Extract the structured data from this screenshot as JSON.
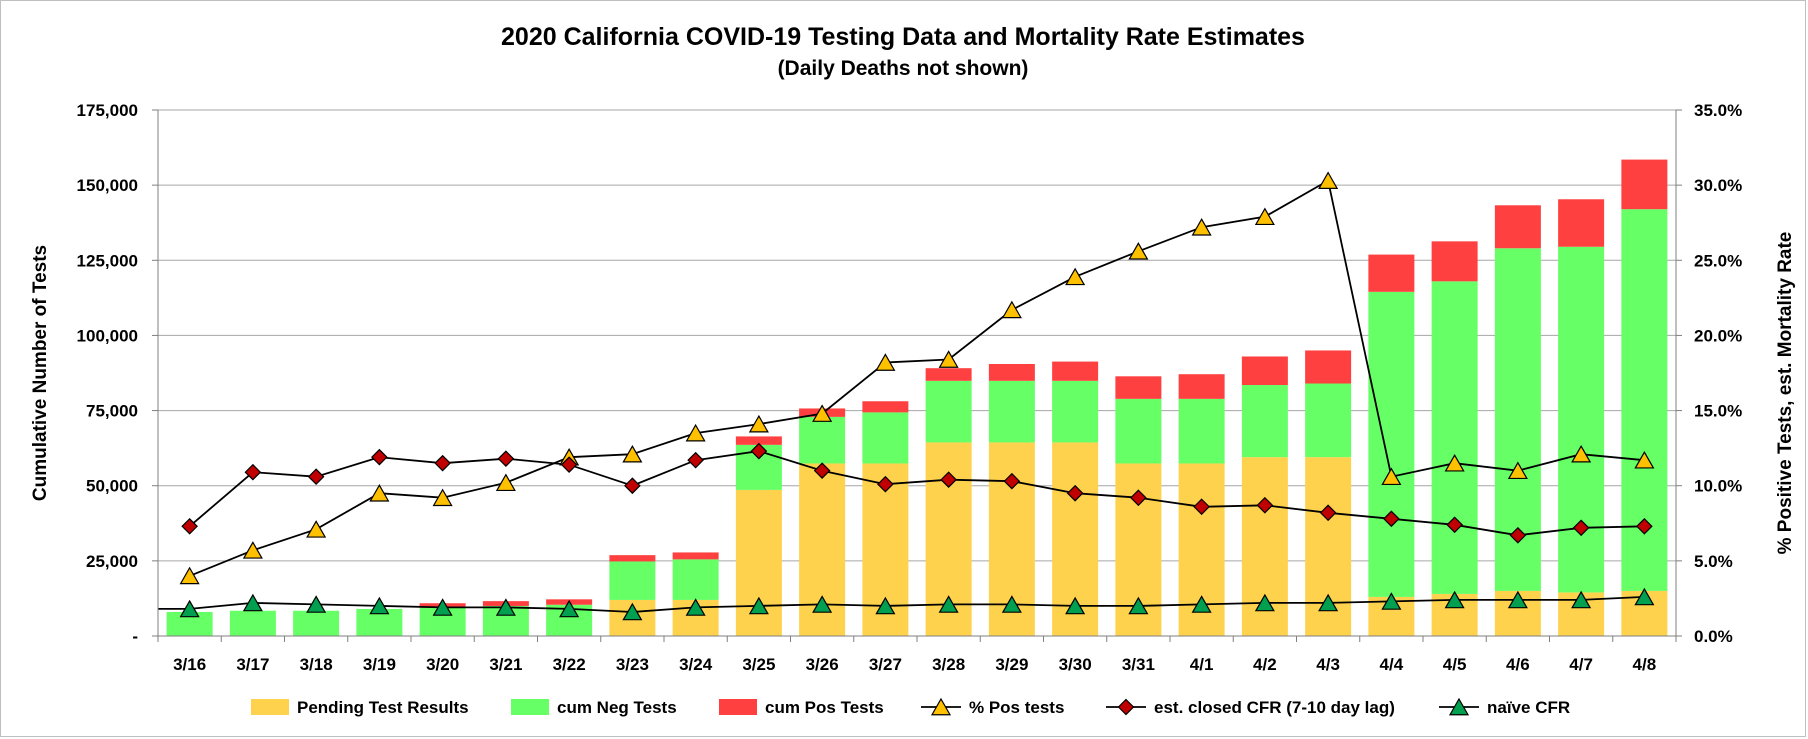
{
  "chart_data": {
    "type": "bar",
    "title": "2020 California COVID-19 Testing Data and Mortality Rate Estimates",
    "subtitle": "(Daily Deaths not shown)",
    "ylabel": "Cumulative Number of Tests",
    "y2label": "% Positive Tests, est. Mortality Rate",
    "ylim": [
      0,
      175000
    ],
    "y2lim": [
      0,
      35
    ],
    "y_ticks": [
      "-",
      "25,000",
      "50,000",
      "75,000",
      "100,000",
      "125,000",
      "150,000",
      "175,000"
    ],
    "y2_ticks": [
      "0.0%",
      "5.0%",
      "10.0%",
      "15.0%",
      "20.0%",
      "25.0%",
      "30.0%",
      "35.0%"
    ],
    "grid": true,
    "legend_position": "bottom",
    "categories": [
      "3/16",
      "3/17",
      "3/18",
      "3/19",
      "3/20",
      "3/21",
      "3/22",
      "3/23",
      "3/24",
      "3/25",
      "3/26",
      "3/27",
      "3/28",
      "3/29",
      "3/30",
      "3/31",
      "4/1",
      "4/2",
      "4/3",
      "4/4",
      "4/5",
      "4/6",
      "4/7",
      "4/8"
    ],
    "bar_series": [
      {
        "name": "Pending Test Results",
        "color": "#ffd24d",
        "values": [
          0,
          0,
          0,
          0,
          0,
          0,
          0,
          12000,
          12000,
          48600,
          57400,
          57400,
          64400,
          64400,
          64400,
          57400,
          57400,
          59500,
          59500,
          13000,
          14000,
          15000,
          14500,
          15000
        ]
      },
      {
        "name": "cum Neg Tests",
        "color": "#66ff66",
        "values": [
          8000,
          8400,
          8400,
          9000,
          9400,
          10000,
          10400,
          12800,
          13500,
          15000,
          15500,
          17000,
          20500,
          20500,
          20500,
          21500,
          21500,
          24000,
          24500,
          101500,
          104000,
          114000,
          115000,
          127000
        ]
      },
      {
        "name": "cum Pos Tests",
        "color": "#ff4040",
        "values": [
          0,
          0,
          0,
          0,
          1500,
          1600,
          1800,
          2100,
          2300,
          2800,
          2800,
          3700,
          4200,
          5600,
          6400,
          7500,
          8200,
          9500,
          11000,
          12400,
          13300,
          14300,
          15800,
          16500
        ]
      }
    ],
    "line_series": [
      {
        "name": "% Pos tests",
        "color": "#ffc000",
        "marker": "triangle",
        "values": [
          4.0,
          5.7,
          7.1,
          9.5,
          9.2,
          10.2,
          11.9,
          12.1,
          13.5,
          14.1,
          14.8,
          18.2,
          18.4,
          21.7,
          23.9,
          25.6,
          27.2,
          27.9,
          30.3,
          10.6,
          11.5,
          11.0,
          12.1,
          11.7
        ]
      },
      {
        "name": "est. closed CFR (7-10 day lag)",
        "color": "#c00000",
        "marker": "diamond",
        "values": [
          7.3,
          10.9,
          10.6,
          11.9,
          11.5,
          11.8,
          11.4,
          10.0,
          11.7,
          12.3,
          11.0,
          10.1,
          10.4,
          10.3,
          9.5,
          9.2,
          8.6,
          8.7,
          8.2,
          7.8,
          7.4,
          6.7,
          7.2,
          7.3
        ]
      },
      {
        "name": "naïve CFR",
        "color": "#00a050",
        "marker": "triangle",
        "values": [
          1.8,
          2.2,
          2.1,
          2.0,
          1.9,
          1.9,
          1.8,
          1.6,
          1.9,
          2.0,
          2.1,
          2.0,
          2.1,
          2.1,
          2.0,
          2.0,
          2.1,
          2.2,
          2.2,
          2.3,
          2.4,
          2.4,
          2.4,
          2.6
        ]
      }
    ]
  }
}
